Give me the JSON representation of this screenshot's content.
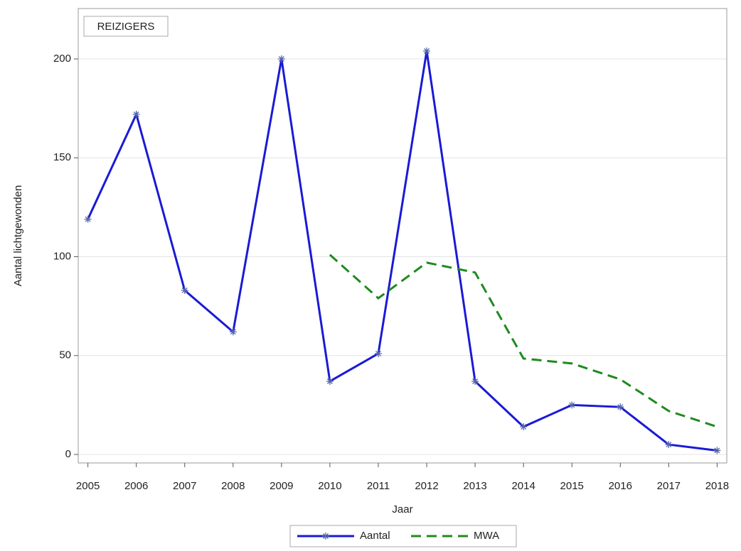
{
  "chart_data": {
    "type": "line",
    "title": "REIZIGERS",
    "x_label": "Jaar",
    "y_label": "Aantal lichtgewonden",
    "x": [
      2005,
      2006,
      2007,
      2008,
      2009,
      2010,
      2011,
      2012,
      2013,
      2014,
      2015,
      2016,
      2017,
      2018
    ],
    "series": [
      {
        "name": "Aantal",
        "color": "#1a1ad6",
        "marker": "star",
        "dash": false,
        "values": [
          119,
          172,
          83,
          62,
          200,
          37,
          51,
          204,
          37,
          14,
          25,
          24,
          5,
          2
        ]
      },
      {
        "name": "MWA",
        "color": "#1f8a1f",
        "dash": true,
        "values": [
          null,
          null,
          null,
          null,
          null,
          101,
          79,
          97,
          92,
          48.5,
          46,
          38,
          22,
          14
        ]
      }
    ],
    "xlim": [
      2004.8,
      2018.2
    ],
    "xticks": [
      2005,
      2006,
      2007,
      2008,
      2009,
      2010,
      2011,
      2012,
      2013,
      2014,
      2015,
      2016,
      2017,
      2018
    ],
    "ylim": [
      -4.3,
      225.5
    ],
    "yticks": [
      0,
      50,
      100,
      150,
      200
    ],
    "grid": true,
    "legend": "bottom"
  }
}
